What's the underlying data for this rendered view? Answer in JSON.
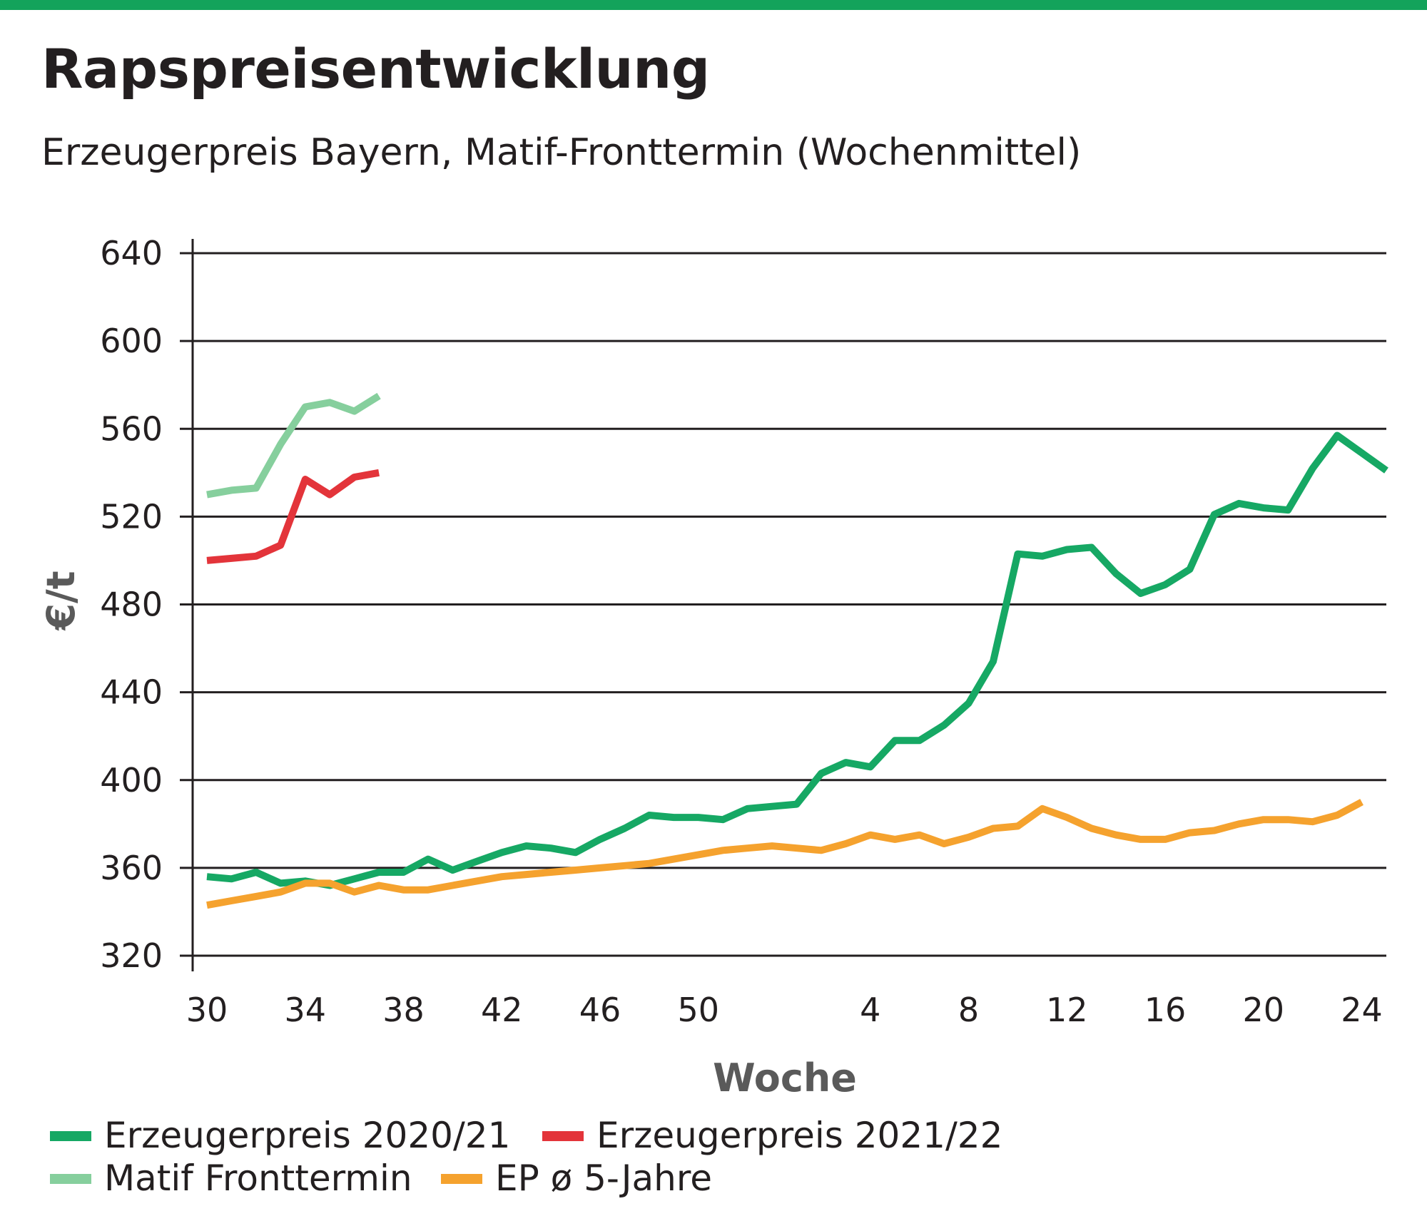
{
  "title": "Rapspreisentwicklung",
  "subtitle": "Erzeugerpreis Bayern, Matif-Fronttermin (Wochenmittel)",
  "colors": {
    "accent": "#13a35b",
    "erzeugerpreis_2020_21": "#16a864",
    "erzeugerpreis_2021_22": "#e3343a",
    "matif_fronttermin": "#86cf9d",
    "ep_5_jahre": "#f5a22e"
  },
  "chart_data": {
    "type": "line",
    "title": "Rapspreisentwicklung",
    "subtitle": "Erzeugerpreis Bayern, Matif-Fronttermin (Wochenmittel)",
    "xlabel": "Woche",
    "ylabel": "€/t",
    "ylim": [
      320,
      640
    ],
    "yticks": [
      320,
      360,
      400,
      440,
      480,
      520,
      560,
      600,
      640
    ],
    "x_weeks": [
      30,
      31,
      32,
      33,
      34,
      35,
      36,
      37,
      38,
      39,
      40,
      41,
      42,
      43,
      44,
      45,
      46,
      47,
      48,
      49,
      50,
      51,
      52,
      53,
      1,
      2,
      3,
      4,
      5,
      6,
      7,
      8,
      9,
      10,
      11,
      12,
      13,
      14,
      15,
      16,
      17,
      18,
      19,
      20,
      21,
      22,
      23,
      24,
      25
    ],
    "xtick_labels": [
      "30",
      "34",
      "38",
      "42",
      "46",
      "50",
      "4",
      "8",
      "12",
      "16",
      "20",
      "24"
    ],
    "grid": true,
    "legend_position": "bottom",
    "series": [
      {
        "name": "Erzeugerpreis 2020/21",
        "color_key": "erzeugerpreis_2020_21",
        "values": [
          356,
          355,
          358,
          353,
          354,
          352,
          355,
          358,
          358,
          364,
          359,
          363,
          367,
          370,
          369,
          367,
          373,
          378,
          384,
          383,
          383,
          382,
          387,
          388,
          389,
          403,
          408,
          406,
          418,
          418,
          425,
          435,
          454,
          503,
          502,
          505,
          506,
          494,
          485,
          489,
          496,
          521,
          526,
          524,
          523,
          542,
          557,
          549,
          541
        ]
      },
      {
        "name": "Erzeugerpreis 2021/22",
        "color_key": "erzeugerpreis_2021_22",
        "values": [
          500,
          501,
          502,
          507,
          537,
          530,
          538,
          540
        ]
      },
      {
        "name": "Matif Fronttermin",
        "color_key": "matif_fronttermin",
        "values": [
          530,
          532,
          533,
          553,
          570,
          572,
          568,
          575
        ]
      },
      {
        "name": "EP ø 5-Jahre",
        "color_key": "ep_5_jahre",
        "values": [
          343,
          345,
          347,
          349,
          353,
          353,
          349,
          352,
          350,
          350,
          352,
          354,
          356,
          357,
          358,
          359,
          360,
          361,
          362,
          364,
          366,
          368,
          369,
          370,
          369,
          368,
          371,
          375,
          373,
          375,
          371,
          374,
          378,
          379,
          387,
          383,
          378,
          375,
          373,
          373,
          376,
          377,
          380,
          382,
          382,
          381,
          384,
          390,
          null
        ]
      }
    ]
  }
}
